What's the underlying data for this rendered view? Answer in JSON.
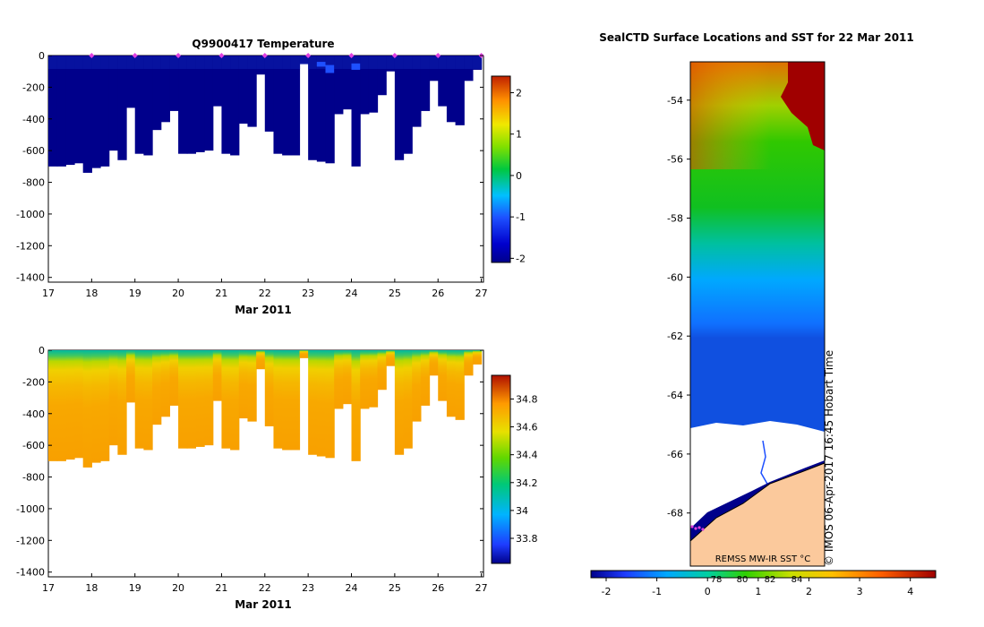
{
  "chart_data": [
    {
      "type": "heatmap",
      "title": "Q9900417  Temperature",
      "xlabel": "Mar 2011",
      "ylabel": "",
      "x_ticks": [
        "17",
        "18",
        "19",
        "20",
        "21",
        "22",
        "23",
        "24",
        "25",
        "26",
        "27"
      ],
      "x_range": [
        17,
        27.05
      ],
      "y_ticks": [
        "0",
        "-200",
        "-400",
        "-600",
        "-800",
        "-1000",
        "-1200",
        "-1400"
      ],
      "y_range": [
        -1430,
        0
      ],
      "colorbar": {
        "range": [
          -2.1,
          2.4
        ],
        "ticks": [
          "2",
          "1",
          "0",
          "-1",
          "-2"
        ]
      },
      "surface_markers_x": [
        18,
        19,
        20,
        21,
        22,
        23,
        24,
        25,
        26,
        27
      ],
      "profile_bottoms": [
        [
          17.1,
          -700
        ],
        [
          17.3,
          -700
        ],
        [
          17.5,
          -690
        ],
        [
          17.7,
          -680
        ],
        [
          17.9,
          -740
        ],
        [
          18.1,
          -710
        ],
        [
          18.3,
          -700
        ],
        [
          18.5,
          -600
        ],
        [
          18.7,
          -660
        ],
        [
          18.9,
          -330
        ],
        [
          19.1,
          -620
        ],
        [
          19.3,
          -630
        ],
        [
          19.5,
          -470
        ],
        [
          19.7,
          -420
        ],
        [
          19.9,
          -350
        ],
        [
          20.1,
          -620
        ],
        [
          20.3,
          -620
        ],
        [
          20.5,
          -610
        ],
        [
          20.7,
          -600
        ],
        [
          20.9,
          -320
        ],
        [
          21.1,
          -620
        ],
        [
          21.3,
          -630
        ],
        [
          21.5,
          -430
        ],
        [
          21.7,
          -450
        ],
        [
          21.9,
          -120
        ],
        [
          22.1,
          -480
        ],
        [
          22.3,
          -620
        ],
        [
          22.5,
          -630
        ],
        [
          22.7,
          -630
        ],
        [
          22.9,
          -50
        ],
        [
          23.1,
          -660
        ],
        [
          23.3,
          -670
        ],
        [
          23.5,
          -680
        ],
        [
          23.7,
          -370
        ],
        [
          23.9,
          -340
        ],
        [
          24.1,
          -700
        ],
        [
          24.3,
          -370
        ],
        [
          24.5,
          -360
        ],
        [
          24.7,
          -250
        ],
        [
          24.9,
          -100
        ],
        [
          25.1,
          -660
        ],
        [
          25.3,
          -620
        ],
        [
          25.5,
          -450
        ],
        [
          25.7,
          -350
        ],
        [
          25.9,
          -160
        ],
        [
          26.1,
          -320
        ],
        [
          26.3,
          -420
        ],
        [
          26.5,
          -440
        ],
        [
          26.7,
          -160
        ],
        [
          26.9,
          -90
        ]
      ]
    },
    {
      "type": "heatmap",
      "title": "",
      "xlabel": "Mar 2011",
      "ylabel": "",
      "x_ticks": [
        "17",
        "18",
        "19",
        "20",
        "21",
        "22",
        "23",
        "24",
        "25",
        "26",
        "27"
      ],
      "x_range": [
        17,
        27.05
      ],
      "y_ticks": [
        "0",
        "-200",
        "-400",
        "-600",
        "-800",
        "-1000",
        "-1200",
        "-1400"
      ],
      "y_range": [
        -1430,
        0
      ],
      "colorbar": {
        "range": [
          33.62,
          34.97
        ],
        "ticks": [
          "34.8",
          "34.6",
          "34.4",
          "34.2",
          "34",
          "33.8"
        ]
      }
    },
    {
      "type": "heatmap",
      "title": "SealCTD Surface Locations and SST for 22 Mar 2011",
      "xlabel": "",
      "ylabel": "",
      "y_ticks": [
        "-54",
        "-56",
        "-58",
        "-60",
        "-62",
        "-64",
        "-66",
        "-68"
      ],
      "y_range": [
        -69.8,
        -52.7
      ],
      "colorbar": {
        "range": [
          -2.3,
          4.5
        ],
        "ticks": [
          "-2",
          "-1",
          "0",
          "1",
          "2",
          "3",
          "4"
        ]
      },
      "colorbar_overlay_ticks": [
        "78",
        "80",
        "82",
        "84"
      ],
      "sst_label": "REMSS MW-IR SST °C",
      "credit": "© IMOS 06-Apr-2017 16:45 Hobart Time"
    }
  ]
}
